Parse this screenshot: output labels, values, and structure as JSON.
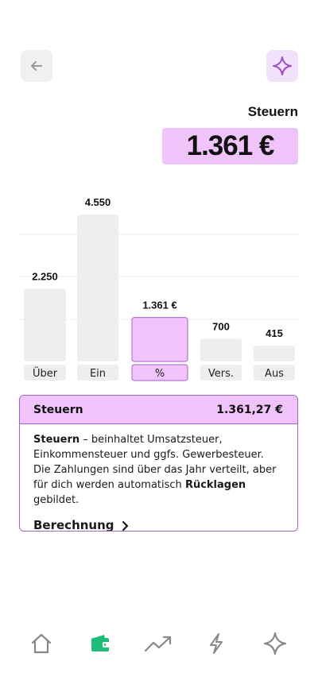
{
  "header": {
    "back_icon": "arrow-left-icon",
    "ai_icon": "sparkle-icon",
    "title": "Steuern",
    "amount": "1.361 €"
  },
  "colors": {
    "accent": "#f0c3fa",
    "accent_border": "#a560c9",
    "bar_gray": "#eeeef1",
    "nav_active": "#1fbd7a",
    "nav_inactive": "#888888"
  },
  "chart_data": {
    "type": "bar",
    "categories": [
      "Über",
      "Ein",
      "%",
      "Vers.",
      "Aus"
    ],
    "values": [
      2250,
      4550,
      1361,
      700,
      415
    ],
    "value_labels": [
      "2.250",
      "4.550",
      "1.361 €",
      "700",
      "415"
    ],
    "highlighted_category": "%",
    "ylim": [
      0,
      4550
    ],
    "grid": true
  },
  "info_card": {
    "title": "Steuern",
    "amount": "1.361,27 €",
    "text_term": "Steuern",
    "text_part1": " – beinhaltet Umsatzsteuer, Einkommensteuer und ggfs. Gewerbesteuer. Die Zahlungen sind über das Jahr verteilt, aber für dich werden automatisch ",
    "text_bold2": "Rücklagen",
    "text_part2": " gebildet.",
    "link_label": "Berechnung",
    "link_icon": "chevron-right-icon"
  },
  "bottom_nav": {
    "items": [
      {
        "icon": "home-icon",
        "active": false
      },
      {
        "icon": "wallet-icon",
        "active": true
      },
      {
        "icon": "trend-up-icon",
        "active": false
      },
      {
        "icon": "lightning-icon",
        "active": false
      },
      {
        "icon": "sparkle-icon",
        "active": false
      }
    ]
  }
}
